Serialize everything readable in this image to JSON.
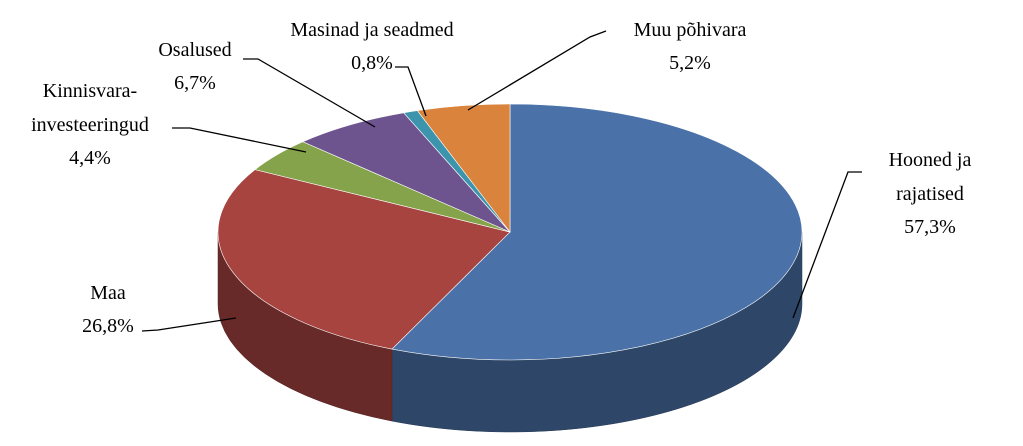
{
  "chart_data": {
    "type": "pie3d",
    "categories": [
      "Hooned ja rajatised",
      "Maa",
      "Kinnisvara-\ninvesteeringud",
      "Osalused",
      "Masinad ja seadmed",
      "Muu põhivara"
    ],
    "values": [
      57.3,
      26.8,
      4.4,
      6.7,
      0.8,
      5.2
    ],
    "value_labels": [
      "57,3%",
      "26,8%",
      "4,4%",
      "6,7%",
      "0,8%",
      "5,2%"
    ],
    "colors": [
      "#4a72a8",
      "#a84440",
      "#85a34a",
      "#6e548f",
      "#3d95ad",
      "#d9833d"
    ]
  }
}
